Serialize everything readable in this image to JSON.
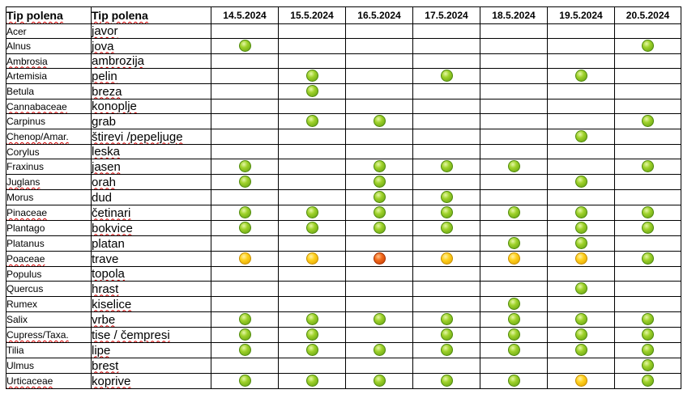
{
  "header": {
    "col1": "Tip polena",
    "col2": "Tip polena",
    "dates": [
      "14.5.2024",
      "15.5.2024",
      "16.5.2024",
      "17.5.2024",
      "18.5.2024",
      "19.5.2024",
      "20.5.2024"
    ]
  },
  "levels": {
    "low": {
      "color": "#8cc63f"
    },
    "mid": {
      "color": "#ffcc00"
    },
    "high": {
      "color": "#f05a12"
    }
  },
  "rows": [
    {
      "latin": "Acer",
      "local": "javor",
      "cells": [
        "",
        "",
        "",
        "",
        "",
        "",
        ""
      ]
    },
    {
      "latin": "Alnus",
      "local": "jova",
      "cells": [
        "low",
        "",
        "",
        "",
        "",
        "",
        "low"
      ]
    },
    {
      "latin": "Ambrosia",
      "local": "ambrozija",
      "cells": [
        "",
        "",
        "",
        "",
        "",
        "",
        ""
      ]
    },
    {
      "latin": "Artemisia",
      "local": "pelin",
      "cells": [
        "",
        "low",
        "",
        "low",
        "",
        "low",
        ""
      ]
    },
    {
      "latin": "Betula",
      "local": "breza",
      "cells": [
        "",
        "low",
        "",
        "",
        "",
        "",
        ""
      ]
    },
    {
      "latin": "Cannabaceae",
      "local": "konoplje",
      "cells": [
        "",
        "",
        "",
        "",
        "",
        "",
        ""
      ]
    },
    {
      "latin": "Carpinus",
      "local": "grab",
      "cells": [
        "",
        "low",
        "low",
        "",
        "",
        "",
        "low"
      ]
    },
    {
      "latin": "Chenop/Amar.",
      "local": "štirevi /pepeljuge",
      "cells": [
        "",
        "",
        "",
        "",
        "",
        "low",
        ""
      ]
    },
    {
      "latin": "Corylus",
      "local": "leska",
      "cells": [
        "",
        "",
        "",
        "",
        "",
        "",
        ""
      ]
    },
    {
      "latin": "Fraxinus",
      "local": "jasen",
      "cells": [
        "low",
        "",
        "low",
        "low",
        "low",
        "",
        "low"
      ]
    },
    {
      "latin": "Juglans",
      "local": "orah",
      "cells": [
        "low",
        "",
        "low",
        "",
        "",
        "low",
        ""
      ]
    },
    {
      "latin": "Morus",
      "local": "dud",
      "cells": [
        "",
        "",
        "low",
        "low",
        "",
        "",
        ""
      ]
    },
    {
      "latin": "Pinaceae",
      "local": "četinari",
      "cells": [
        "low",
        "low",
        "low",
        "low",
        "low",
        "low",
        "low"
      ]
    },
    {
      "latin": "Plantago",
      "local": "bokvice",
      "cells": [
        "low",
        "low",
        "low",
        "low",
        "",
        "low",
        "low"
      ]
    },
    {
      "latin": "Platanus",
      "local": "platan",
      "cells": [
        "",
        "",
        "",
        "",
        "low",
        "low",
        ""
      ]
    },
    {
      "latin": "Poaceae",
      "local": "trave",
      "cells": [
        "mid",
        "mid",
        "high",
        "mid",
        "mid",
        "mid",
        "low"
      ]
    },
    {
      "latin": "Populus",
      "local": "topola",
      "cells": [
        "",
        "",
        "",
        "",
        "",
        "",
        ""
      ]
    },
    {
      "latin": "Quercus",
      "local": "hrast",
      "cells": [
        "",
        "",
        "",
        "",
        "",
        "low",
        ""
      ]
    },
    {
      "latin": "Rumex",
      "local": "kiselice",
      "cells": [
        "",
        "",
        "",
        "",
        "low",
        "",
        ""
      ]
    },
    {
      "latin": "Salix",
      "local": "vrbe",
      "cells": [
        "low",
        "low",
        "low",
        "low",
        "low",
        "low",
        "low"
      ]
    },
    {
      "latin": "Cupress/Taxa.",
      "local": "tise / čempresi",
      "cells": [
        "low",
        "low",
        "",
        "low",
        "low",
        "low",
        "low"
      ]
    },
    {
      "latin": "Tilia",
      "local": "lipe",
      "cells": [
        "low",
        "low",
        "low",
        "low",
        "low",
        "low",
        "low"
      ]
    },
    {
      "latin": "Ulmus",
      "local": "brest",
      "cells": [
        "",
        "",
        "",
        "",
        "",
        "",
        "low"
      ]
    },
    {
      "latin": "Urticaceae",
      "local": "koprive",
      "cells": [
        "low",
        "low",
        "low",
        "low",
        "low",
        "mid",
        "low"
      ]
    }
  ]
}
